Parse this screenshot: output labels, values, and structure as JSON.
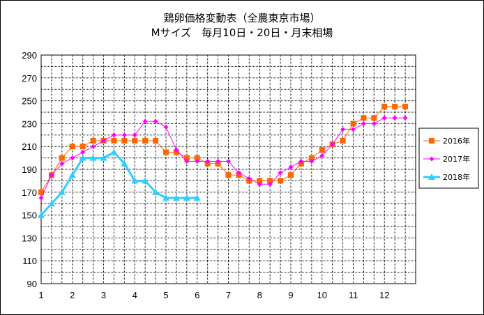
{
  "chart_data": {
    "type": "line",
    "title_lines": [
      "鶏卵価格変動表（全農東京市場）",
      "Mサイズ　毎月10日・20日・月末相場"
    ],
    "x_ticks": [
      "1",
      "2",
      "3",
      "4",
      "5",
      "6",
      "7",
      "8",
      "9",
      "10",
      "11",
      "12"
    ],
    "y_ticks": [
      "290",
      "270",
      "250",
      "230",
      "210",
      "190",
      "170",
      "150",
      "130",
      "110",
      "90"
    ],
    "ylim": [
      90,
      290
    ],
    "xlim": [
      1,
      13
    ],
    "grid": true,
    "legend_position": "right",
    "series": [
      {
        "name": "2016年",
        "color": "#FF6600",
        "marker": "square",
        "x": [
          1.0,
          1.333,
          1.667,
          2.0,
          2.333,
          2.667,
          3.0,
          3.333,
          3.667,
          4.0,
          4.333,
          4.667,
          5.0,
          5.333,
          5.667,
          6.0,
          6.333,
          6.667,
          7.0,
          7.333,
          7.667,
          8.0,
          8.333,
          8.667,
          9.0,
          9.333,
          9.667,
          10.0,
          10.333,
          10.667,
          11.0,
          11.333,
          11.667,
          12.0,
          12.333,
          12.667
        ],
        "values": [
          170,
          185,
          200,
          210,
          210,
          215,
          215,
          215,
          215,
          215,
          215,
          215,
          205,
          205,
          200,
          200,
          195,
          195,
          185,
          185,
          180,
          180,
          180,
          180,
          185,
          195,
          200,
          207,
          212,
          215,
          230,
          235,
          235,
          245,
          245,
          245
        ]
      },
      {
        "name": "2017年",
        "color": "#FF00FF",
        "marker": "diamond",
        "x": [
          1.0,
          1.333,
          1.667,
          2.0,
          2.333,
          2.667,
          3.0,
          3.333,
          3.667,
          4.0,
          4.333,
          4.667,
          5.0,
          5.333,
          5.667,
          6.0,
          6.333,
          6.667,
          7.0,
          7.333,
          7.667,
          8.0,
          8.333,
          8.667,
          9.0,
          9.333,
          9.667,
          10.0,
          10.333,
          10.667,
          11.0,
          11.333,
          11.667,
          12.0,
          12.333,
          12.667
        ],
        "values": [
          165,
          185,
          195,
          200,
          205,
          210,
          215,
          220,
          220,
          220,
          232,
          232,
          227,
          207,
          197,
          197,
          197,
          197,
          197,
          187,
          182,
          177,
          177,
          187,
          192,
          197,
          197,
          202,
          212,
          225,
          225,
          230,
          230,
          235,
          235,
          235
        ]
      },
      {
        "name": "2018年",
        "color": "#33CCFF",
        "marker": "triangle",
        "x": [
          1.0,
          1.333,
          1.667,
          2.0,
          2.333,
          2.667,
          3.0,
          3.333,
          3.667,
          4.0,
          4.333,
          4.667,
          5.0,
          5.333,
          5.667,
          6.0
        ],
        "values": [
          150,
          160,
          170,
          185,
          200,
          200,
          200,
          205,
          195,
          180,
          180,
          170,
          165,
          165,
          165,
          165
        ]
      }
    ]
  }
}
